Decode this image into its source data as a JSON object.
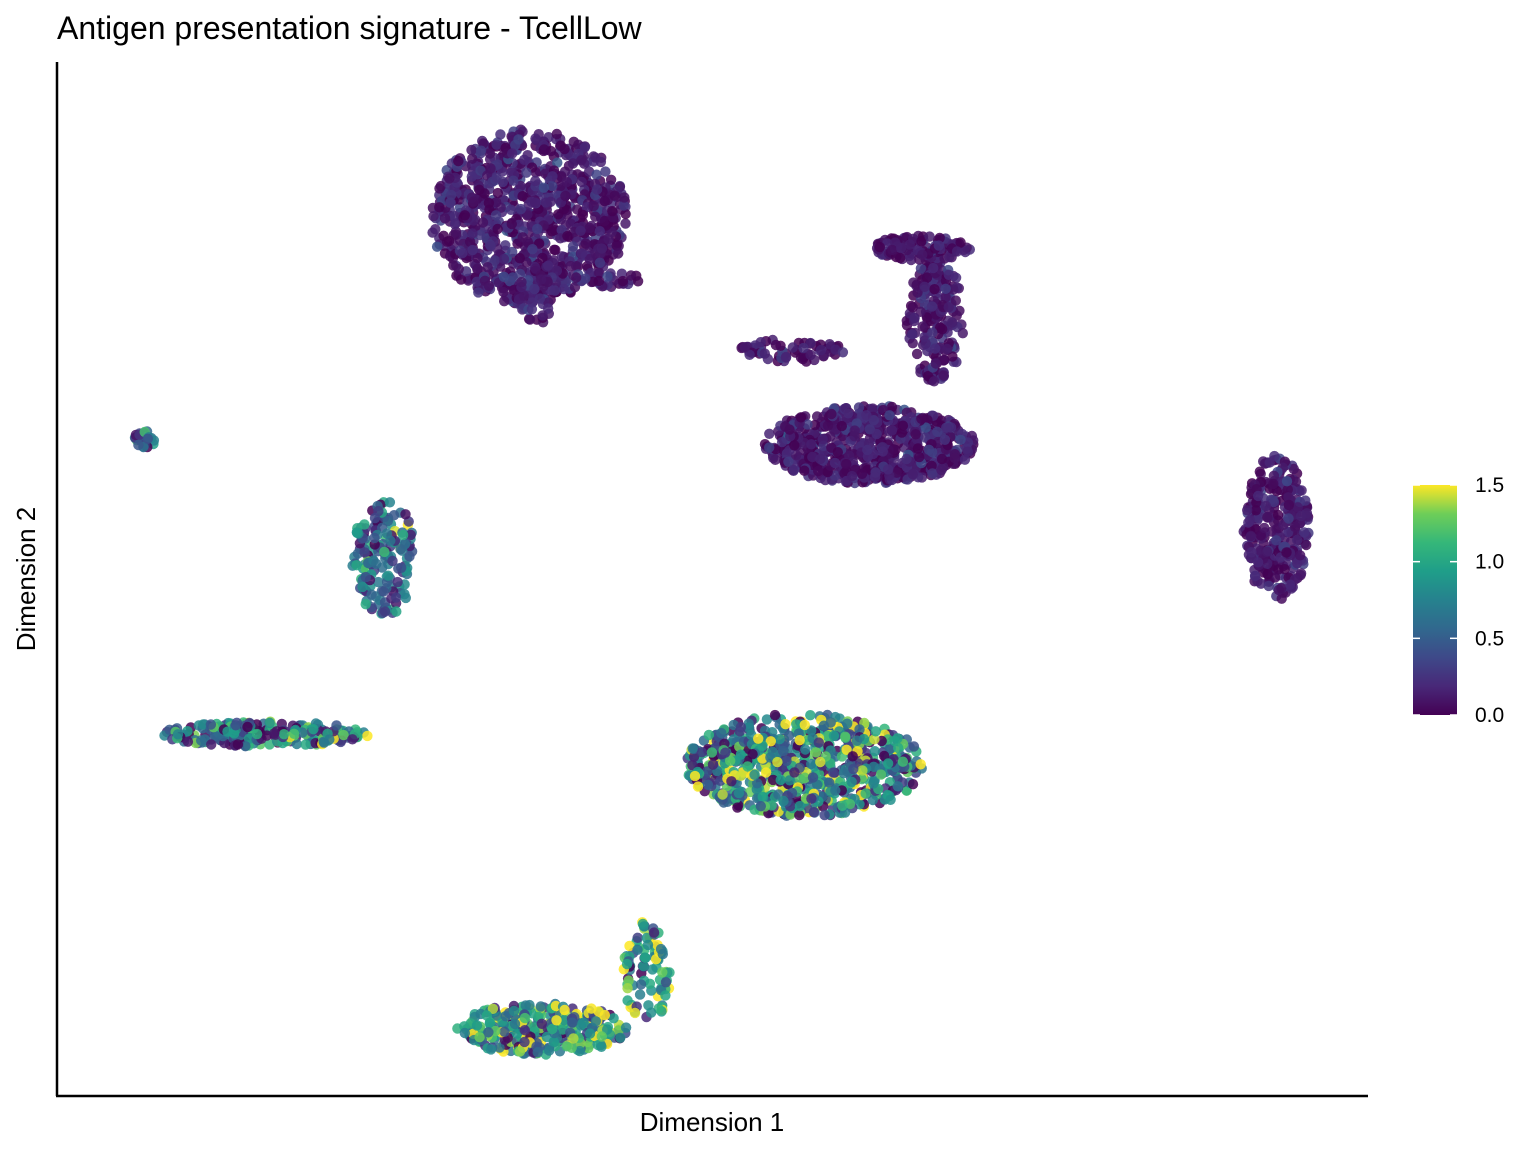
{
  "chart_data": {
    "type": "scatter",
    "title": "Antigen presentation signature - TcellLow",
    "xlabel": "Dimension 1",
    "ylabel": "Dimension 2",
    "xlim": [
      0,
      100
    ],
    "ylim": [
      0,
      100
    ],
    "x_ticks_shown": false,
    "y_ticks_shown": false,
    "grid": false,
    "colorbar": {
      "colormap": "viridis",
      "range": [
        0.0,
        1.5
      ],
      "ticks": [
        {
          "value": 0.0,
          "label": "0.0"
        },
        {
          "value": 0.5,
          "label": "0.5"
        },
        {
          "value": 1.0,
          "label": "1.0"
        },
        {
          "value": 1.5,
          "label": "1.5"
        }
      ],
      "placement": "right"
    },
    "clusters": [
      {
        "name": "top-blob",
        "cx": 36,
        "cy": 85,
        "rx": 7.5,
        "ry": 8.5,
        "count": 900,
        "mean": 0.12,
        "spread": 0.12
      },
      {
        "name": "top-blob-tail",
        "cx": 42,
        "cy": 79,
        "rx": 2.5,
        "ry": 0.8,
        "count": 30,
        "mean": 0.15,
        "spread": 0.1
      },
      {
        "name": "top-blob-point",
        "cx": 36.5,
        "cy": 77,
        "rx": 1.5,
        "ry": 2.5,
        "count": 40,
        "mean": 0.15,
        "spread": 0.1
      },
      {
        "name": "right-upper-blob",
        "cx": 62,
        "cy": 63,
        "rx": 8,
        "ry": 3.8,
        "count": 700,
        "mean": 0.12,
        "spread": 0.12
      },
      {
        "name": "right-upper-arm",
        "cx": 67,
        "cy": 75,
        "rx": 2.2,
        "ry": 6,
        "count": 200,
        "mean": 0.12,
        "spread": 0.1
      },
      {
        "name": "right-upper-hook",
        "cx": 66,
        "cy": 82,
        "rx": 3.8,
        "ry": 1.2,
        "count": 120,
        "mean": 0.1,
        "spread": 0.1
      },
      {
        "name": "diagonal-strand",
        "cx": 56,
        "cy": 72,
        "rx": 4,
        "ry": 1.2,
        "count": 60,
        "mean": 0.1,
        "spread": 0.1
      },
      {
        "name": "far-right-ellipse",
        "cx": 93,
        "cy": 55,
        "rx": 2.5,
        "ry": 7,
        "count": 300,
        "mean": 0.12,
        "spread": 0.1
      },
      {
        "name": "small-left-cluster",
        "cx": 6.7,
        "cy": 63.5,
        "rx": 0.9,
        "ry": 0.8,
        "count": 25,
        "mean": 0.55,
        "spread": 0.3
      },
      {
        "name": "c-shaped-cluster",
        "cx": 25,
        "cy": 52,
        "rx": 2.5,
        "ry": 5.5,
        "count": 160,
        "mean": 0.55,
        "spread": 0.35
      },
      {
        "name": "left-strand",
        "cx": 16,
        "cy": 35,
        "rx": 8,
        "ry": 1.2,
        "count": 220,
        "mean": 0.6,
        "spread": 0.45
      },
      {
        "name": "middle-right-triangle",
        "cx": 57,
        "cy": 32,
        "rx": 9,
        "ry": 5,
        "count": 800,
        "mean": 0.75,
        "spread": 0.5
      },
      {
        "name": "bottom-crescent",
        "cx": 37,
        "cy": 6.5,
        "rx": 6.5,
        "ry": 2.5,
        "count": 330,
        "mean": 0.85,
        "spread": 0.45
      },
      {
        "name": "bottom-crescent-arm",
        "cx": 45,
        "cy": 12,
        "rx": 1.8,
        "ry": 5,
        "count": 90,
        "mean": 1.0,
        "spread": 0.45
      }
    ]
  }
}
